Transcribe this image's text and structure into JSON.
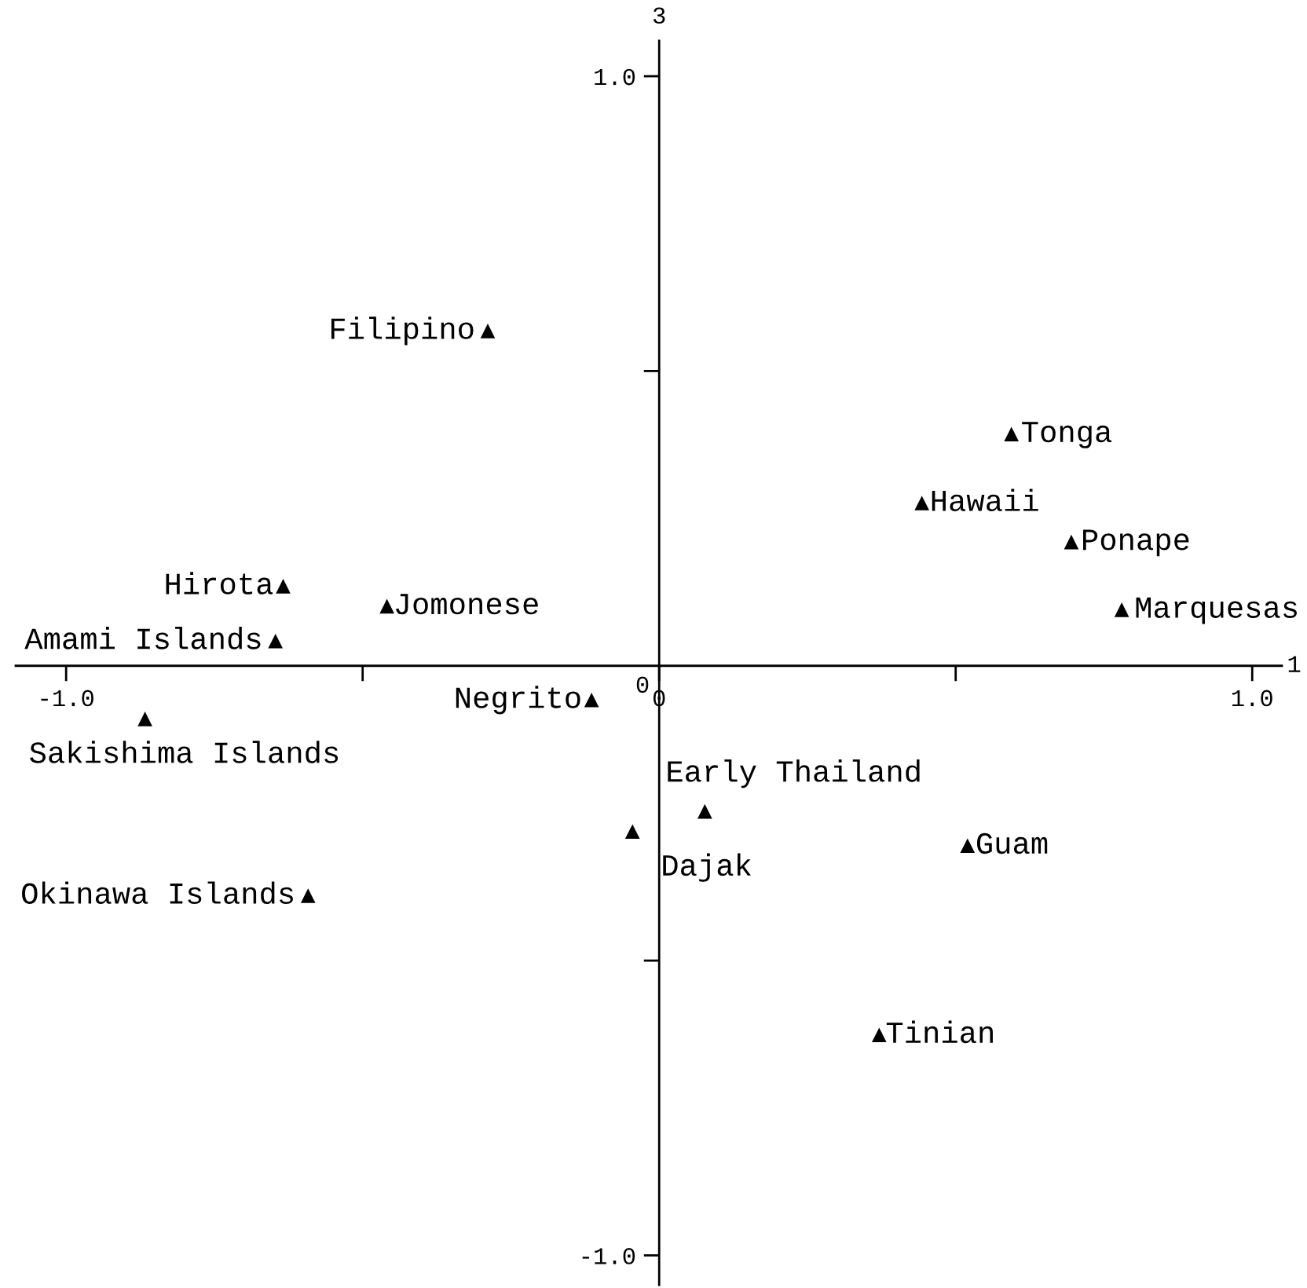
{
  "chart_data": {
    "type": "scatter",
    "xlabel": "1",
    "ylabel": "3",
    "color": "#000000",
    "marker": "triangle",
    "grid": false,
    "legend": false,
    "xlim": [
      -1.085,
      1.05
    ],
    "ylim": [
      -1.05,
      1.06
    ],
    "xticks": [
      {
        "value": -1.0,
        "label": "-1.0"
      },
      {
        "value": -0.5,
        "label": null
      },
      {
        "value": 0,
        "label": "0"
      },
      {
        "value": 0.5,
        "label": null
      },
      {
        "value": 1.0,
        "label": "1.0"
      }
    ],
    "yticks": [
      {
        "value": -1.0,
        "label": "-1.0"
      },
      {
        "value": -0.5,
        "label": null
      },
      {
        "value": 0.5,
        "label": null
      },
      {
        "value": 1.0,
        "label": "1.0"
      }
    ],
    "x": [
      -0.289,
      0.594,
      0.443,
      0.695,
      0.78,
      -0.634,
      -0.459,
      -0.647,
      -0.114,
      -0.867,
      0.077,
      -0.045,
      0.52,
      -0.592,
      0.371
    ],
    "values": [
      0.568,
      0.393,
      0.276,
      0.21,
      0.095,
      0.135,
      0.101,
      0.042,
      -0.058,
      -0.09,
      -0.247,
      -0.281,
      -0.305,
      -0.39,
      -0.626
    ],
    "annotations": [
      {
        "text": "Filipino",
        "x": -0.289,
        "y": 0.568
      },
      {
        "text": "Tonga",
        "x": 0.594,
        "y": 0.393
      },
      {
        "text": "Hawaii",
        "x": 0.443,
        "y": 0.276
      },
      {
        "text": "Ponape",
        "x": 0.695,
        "y": 0.21
      },
      {
        "text": "Marquesas",
        "x": 0.78,
        "y": 0.095
      },
      {
        "text": "Hirota",
        "x": -0.634,
        "y": 0.135
      },
      {
        "text": "Jomonese",
        "x": -0.459,
        "y": 0.101
      },
      {
        "text": "Amami Islands",
        "x": -0.647,
        "y": 0.042
      },
      {
        "text": "Negrito",
        "x": -0.114,
        "y": -0.058
      },
      {
        "text": "Sakishima Islands",
        "x": -0.867,
        "y": -0.09
      },
      {
        "text": "Early Thailand",
        "x": 0.077,
        "y": -0.247
      },
      {
        "text": "Dajak",
        "x": -0.045,
        "y": -0.281
      },
      {
        "text": "Guam",
        "x": 0.52,
        "y": -0.305
      },
      {
        "text": "Okinawa Islands",
        "x": -0.592,
        "y": -0.39
      },
      {
        "text": "Tinian",
        "x": 0.371,
        "y": -0.626
      }
    ]
  }
}
